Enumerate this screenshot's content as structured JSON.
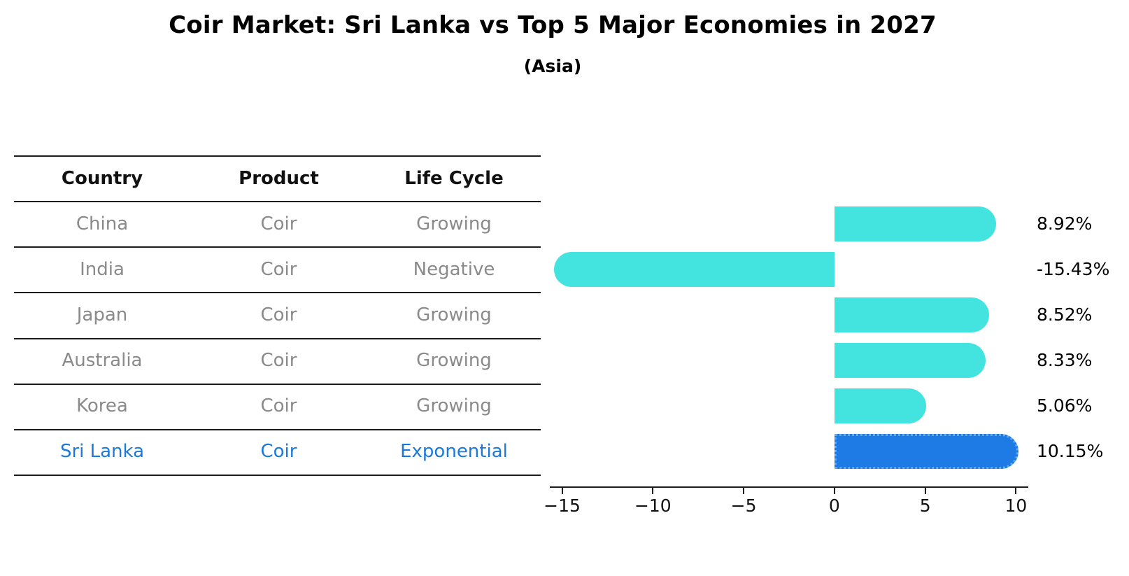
{
  "title": "Coir Market: Sri Lanka vs Top 5 Major Economies in 2027",
  "subtitle": "(Asia)",
  "table": {
    "headers": [
      "Country",
      "Product",
      "Life Cycle"
    ],
    "rows": [
      {
        "country": "China",
        "product": "Coir",
        "life_cycle": "Growing",
        "highlight": false
      },
      {
        "country": "India",
        "product": "Coir",
        "life_cycle": "Negative",
        "highlight": false
      },
      {
        "country": "Japan",
        "product": "Coir",
        "life_cycle": "Growing",
        "highlight": false
      },
      {
        "country": "Australia",
        "product": "Coir",
        "life_cycle": "Growing",
        "highlight": false
      },
      {
        "country": "Korea",
        "product": "Coir",
        "life_cycle": "Growing",
        "highlight": false
      },
      {
        "country": "Sri Lanka",
        "product": "Coir",
        "life_cycle": "Exponential",
        "highlight": true
      }
    ]
  },
  "chart_data": {
    "type": "bar",
    "orientation": "horizontal",
    "categories": [
      "China",
      "India",
      "Japan",
      "Australia",
      "Korea",
      "Sri Lanka"
    ],
    "values": [
      8.92,
      -15.43,
      8.52,
      8.33,
      5.06,
      10.15
    ],
    "value_labels": [
      "8.92%",
      "-15.43%",
      "8.52%",
      "8.33%",
      "5.06%",
      "10.15%"
    ],
    "highlight_index": 5,
    "xlim": [
      -15.6,
      10.6
    ],
    "x_ticks": [
      -15,
      -10,
      -5,
      0,
      5,
      10
    ],
    "x_tick_labels": [
      "−15",
      "−10",
      "−5",
      "0",
      "5",
      "10"
    ],
    "grid": false,
    "legend": false,
    "bar_color": "#43E4DF",
    "highlight_bar_color": "#1E7AE5",
    "highlight_border_color": "#5FA9EF",
    "value_label_color": "#000000"
  },
  "colors": {
    "header_text": "#111111",
    "row_text": "#8A8A8A",
    "highlight_text": "#1B7AD9",
    "line": "#1C1C1C"
  }
}
